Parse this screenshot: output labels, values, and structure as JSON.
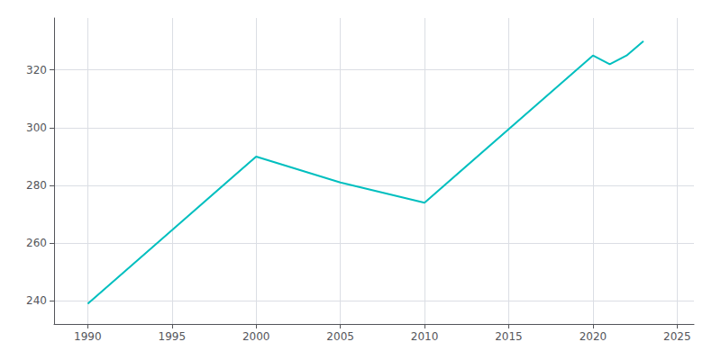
{
  "chart_data": {
    "type": "line",
    "x": [
      1990,
      2000,
      2005,
      2010,
      2020,
      2021,
      2022,
      2023
    ],
    "values": [
      239,
      290,
      281,
      274,
      325,
      322,
      325,
      330
    ],
    "color": "#00BFBF",
    "xlim": [
      1988,
      2026
    ],
    "ylim": [
      232,
      338
    ],
    "xticks": [
      1990,
      1995,
      2000,
      2005,
      2010,
      2015,
      2020,
      2025
    ],
    "yticks": [
      240,
      260,
      280,
      300,
      320
    ],
    "grid": true
  }
}
